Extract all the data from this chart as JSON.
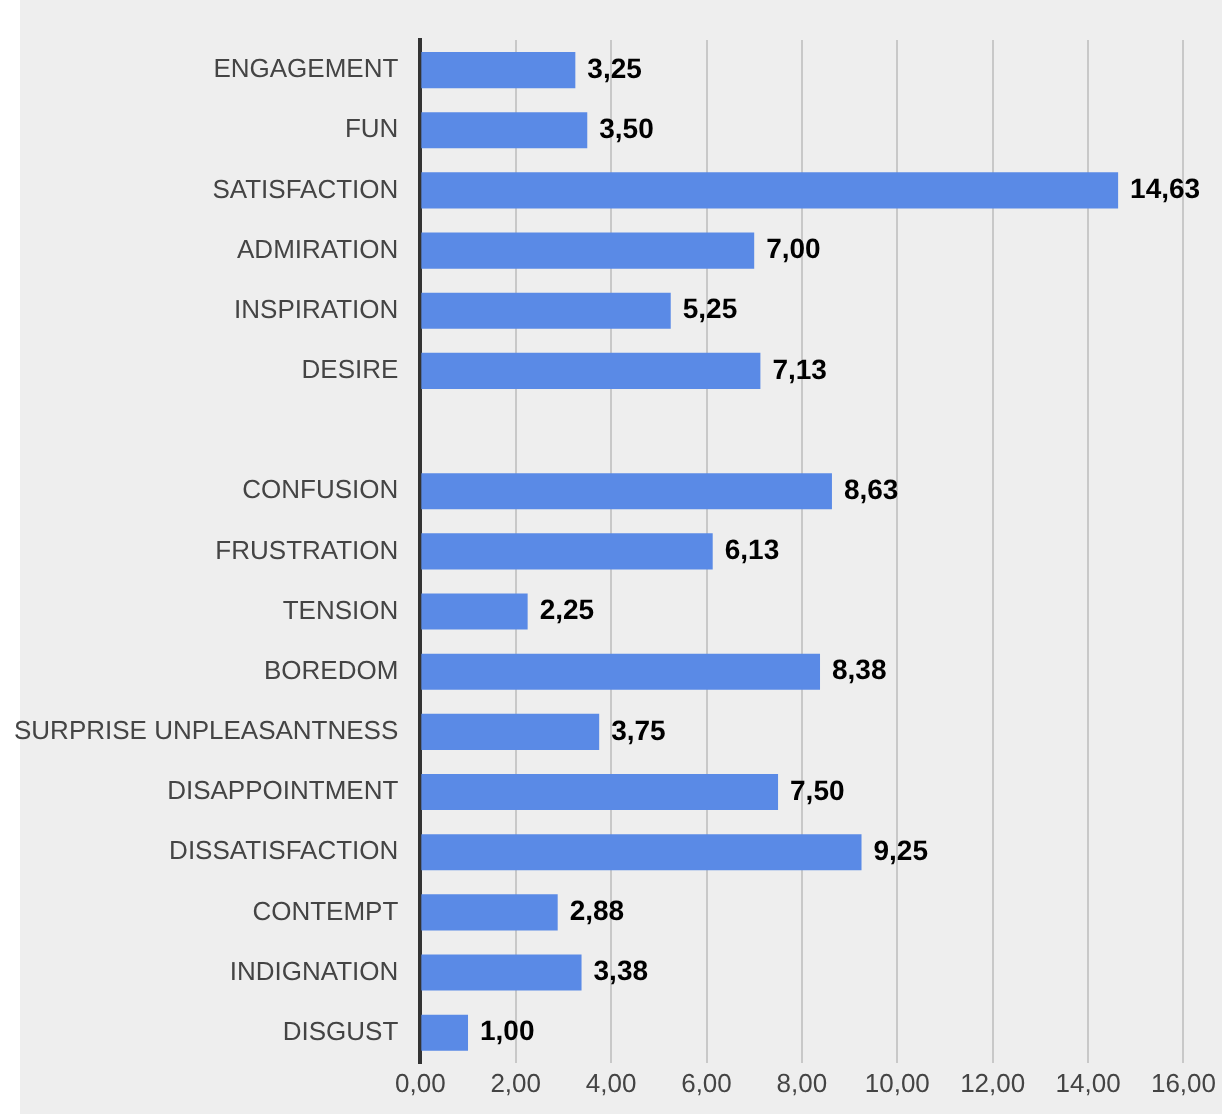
{
  "chart_data": {
    "type": "bar",
    "orientation": "horizontal",
    "categories": [
      "ENGAGEMENT",
      "FUN",
      "SATISFACTION",
      "ADMIRATION",
      "INSPIRATION",
      "DESIRE",
      null,
      "CONFUSION",
      "FRUSTRATION",
      "TENSION",
      "BOREDOM",
      "SURPRISE UNPLEASANTNESS",
      "DISAPPOINTMENT",
      "DISSATISFACTION",
      "CONTEMPT",
      "INDIGNATION",
      "DISGUST"
    ],
    "values": [
      3.25,
      3.5,
      14.63,
      7,
      5.25,
      7.13,
      null,
      8.63,
      6.13,
      2.25,
      8.38,
      3.75,
      7.5,
      9.25,
      2.88,
      3.38,
      1
    ],
    "value_labels": [
      "3,25",
      "3,50",
      "14,63",
      "7,00",
      "5,25",
      "7,13",
      null,
      "8,63",
      "6,13",
      "2,25",
      "8,38",
      "3,75",
      "7,50",
      "9,25",
      "2,88",
      "3,38",
      "1,00"
    ],
    "color": "#5a8ae6",
    "xlim": [
      0,
      16
    ],
    "xticks": [
      {
        "value": 0,
        "label": "0,00"
      },
      {
        "value": 2,
        "label": "2,00"
      },
      {
        "value": 4,
        "label": "4,00"
      },
      {
        "value": 6,
        "label": "6,00"
      },
      {
        "value": 8,
        "label": "8,00"
      },
      {
        "value": 10,
        "label": "10,00"
      },
      {
        "value": 12,
        "label": "12,00"
      },
      {
        "value": 14,
        "label": "14,00"
      },
      {
        "value": 16,
        "label": "16,00"
      }
    ],
    "grid": "x"
  }
}
